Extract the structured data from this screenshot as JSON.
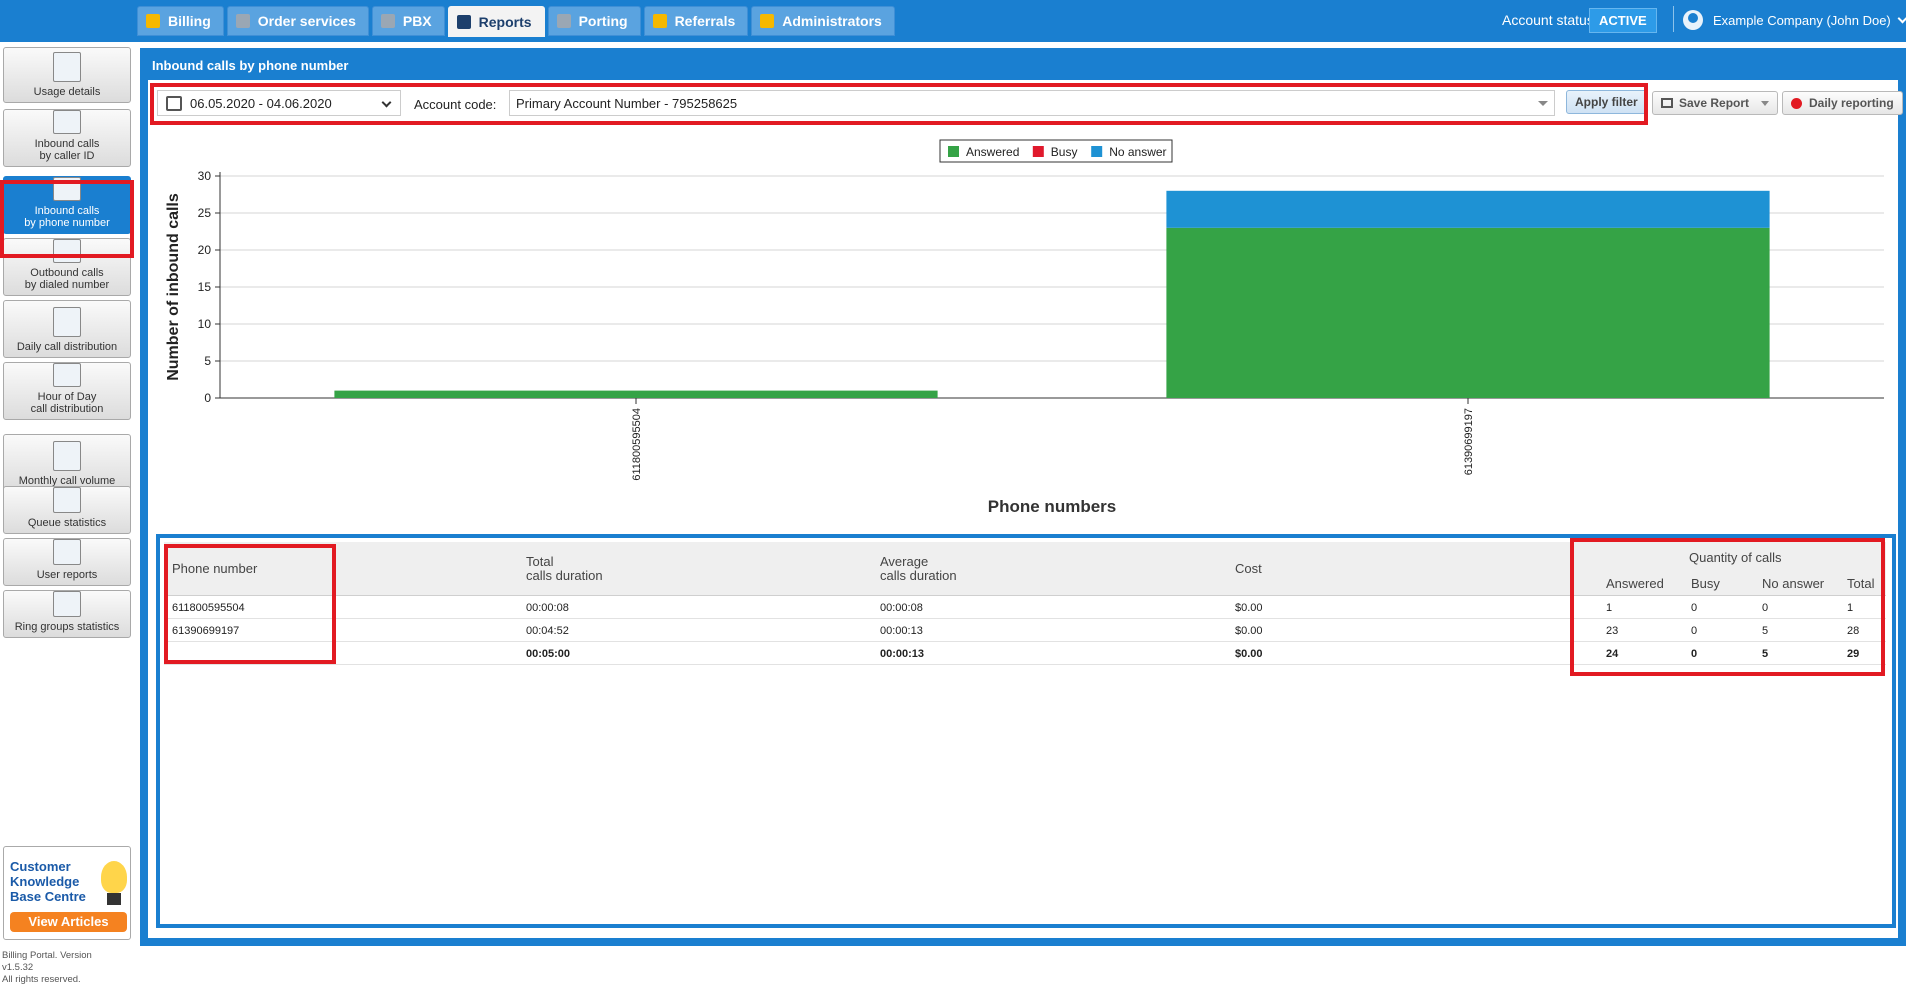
{
  "tabs": [
    {
      "label": "Billing",
      "icon": "coins-icon",
      "color": "#f5b800",
      "active": false
    },
    {
      "label": "Order services",
      "icon": "cart-icon",
      "color": "#9aa7b4",
      "active": false
    },
    {
      "label": "PBX",
      "icon": "pbx-icon",
      "color": "#9aa7b4",
      "active": false
    },
    {
      "label": "Reports",
      "icon": "report-icon",
      "color": "#1d3f6c",
      "active": true
    },
    {
      "label": "Porting",
      "icon": "phone-icon",
      "color": "#9aa7b4",
      "active": false
    },
    {
      "label": "Referrals",
      "icon": "person-icon",
      "color": "#f5b800",
      "active": false
    },
    {
      "label": "Administrators",
      "icon": "admin-icon",
      "color": "#f5b800",
      "active": false
    }
  ],
  "account": {
    "status_label": "Account status:",
    "status_value": "ACTIVE",
    "user": "Example Company (John Doe)"
  },
  "sidebar": {
    "items": [
      {
        "label_1": "Usage details",
        "label_2": "",
        "icon": "usage-details-icon",
        "active": false
      },
      {
        "label_1": "Inbound calls",
        "label_2": "by caller ID",
        "icon": "inbound-caller-icon",
        "active": false
      },
      {
        "label_1": "Inbound calls",
        "label_2": "by phone number",
        "icon": "inbound-number-icon",
        "active": true
      },
      {
        "label_1": "Outbound calls",
        "label_2": "by dialed number",
        "icon": "outbound-calls-icon",
        "active": false
      },
      {
        "label_1": "Daily call distribution",
        "label_2": "",
        "icon": "calendar-day-icon",
        "active": false
      },
      {
        "label_1": "Hour of Day",
        "label_2": "call distribution",
        "icon": "bar-chart-icon",
        "active": false
      },
      {
        "label_1": "Monthly call volume",
        "label_2": "",
        "icon": "calendar-month-icon",
        "active": false
      },
      {
        "label_1": "Queue statistics",
        "label_2": "",
        "icon": "megaphone-icon",
        "active": false
      },
      {
        "label_1": "User reports",
        "label_2": "",
        "icon": "user-icon",
        "active": false
      },
      {
        "label_1": "Ring groups statistics",
        "label_2": "",
        "icon": "ring-group-icon",
        "active": false
      }
    ],
    "kb_line1": "Customer",
    "kb_line2": "Knowledge",
    "kb_line3": "Base Centre",
    "kb_button": "View Articles",
    "version_1": "Billing Portal. Version",
    "version_2": "v1.5.32",
    "version_3": "All rights reserved."
  },
  "page": {
    "title": "Inbound calls by phone number",
    "date_range": "06.05.2020 - 04.06.2020",
    "account_code_label": "Account code:",
    "account_code_value": "Primary Account Number - 795258625",
    "apply_label": "Apply filter",
    "save_label": "Save Report",
    "daily_label": "Daily reporting"
  },
  "chart_data": {
    "type": "bar",
    "stacked": true,
    "categories": [
      "611800595504",
      "61390699197"
    ],
    "series": [
      {
        "name": "Answered",
        "color": "#35a346",
        "values": [
          1,
          23
        ]
      },
      {
        "name": "Busy",
        "color": "#e0192c",
        "values": [
          0,
          0
        ]
      },
      {
        "name": "No answer",
        "color": "#1e92d4",
        "values": [
          0,
          5
        ]
      }
    ],
    "xlabel": "Phone numbers",
    "ylabel": "Number of inbound calls",
    "ylim": [
      0,
      30
    ],
    "yticks": [
      0,
      5,
      10,
      15,
      20,
      25,
      30
    ],
    "grid": true,
    "legend": "top-center"
  },
  "table": {
    "headers": {
      "phone": "Phone number",
      "total_1": "Total",
      "total_2": "calls duration",
      "avg_1": "Average",
      "avg_2": "calls duration",
      "cost": "Cost",
      "qty": "Quantity of calls",
      "answered": "Answered",
      "busy": "Busy",
      "noanswer": "No answer",
      "total": "Total"
    },
    "rows": [
      {
        "phone": "611800595504",
        "total": "00:00:08",
        "avg": "00:00:08",
        "cost": "$0.00",
        "answered": "1",
        "busy": "0",
        "noanswer": "0",
        "sum": "1"
      },
      {
        "phone": "61390699197",
        "total": "00:04:52",
        "avg": "00:00:13",
        "cost": "$0.00",
        "answered": "23",
        "busy": "0",
        "noanswer": "5",
        "sum": "28"
      },
      {
        "phone": "",
        "total": "00:05:00",
        "avg": "00:00:13",
        "cost": "$0.00",
        "answered": "24",
        "busy": "0",
        "noanswer": "5",
        "sum": "29"
      }
    ]
  }
}
